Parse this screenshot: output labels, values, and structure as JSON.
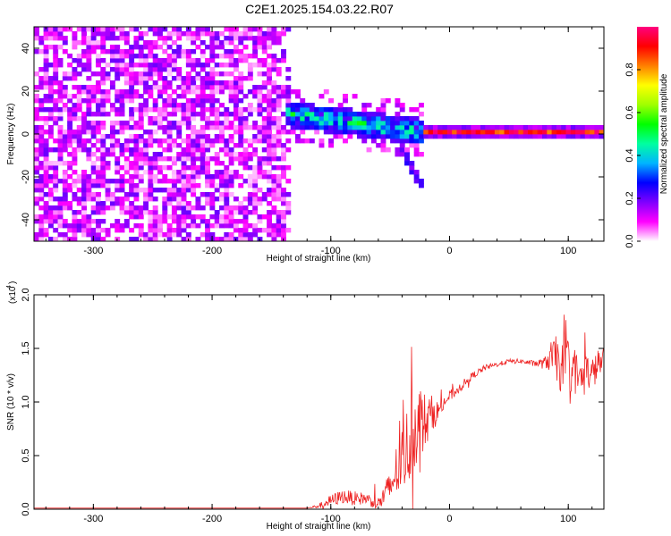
{
  "title": "C2E1.2025.154.03.22.R07",
  "chart_data": [
    {
      "type": "heatmap",
      "xlabel": "Height of straight line (km)",
      "ylabel": "Frequency (Hz)",
      "xlim": [
        -350,
        130
      ],
      "ylim": [
        -50,
        50
      ],
      "x_ticks": [
        -300,
        -200,
        -100,
        0,
        100
      ],
      "x_tick_labels": [
        "-300",
        "-200",
        "-100",
        "0",
        "100"
      ],
      "y_ticks": [
        -40,
        -20,
        0,
        20,
        40
      ],
      "y_tick_labels": [
        "-40",
        "-20",
        "0",
        "20",
        "40"
      ],
      "colorbar": {
        "label": "Normalized spectral amplitude",
        "range": [
          0.0,
          1.0
        ],
        "ticks": [
          0.0,
          0.2,
          0.4,
          0.6,
          0.8
        ],
        "tick_labels": [
          "0.0",
          "0.2",
          "0.4",
          "0.6",
          "0.8"
        ],
        "colors": [
          "#ffffff",
          "#ff00ff",
          "#7f00ff",
          "#0000ff",
          "#00b4ff",
          "#00ffa0",
          "#00ff00",
          "#a0ff00",
          "#ffff00",
          "#ff7f00",
          "#ff0000",
          "#ff007f"
        ]
      },
      "regions": [
        {
          "x_range": [
            -350,
            -135
          ],
          "freq_range": [
            -50,
            50
          ],
          "amplitude": [
            0.0,
            0.2
          ],
          "pattern": "uniform noise"
        },
        {
          "x_range": [
            -135,
            -25
          ],
          "freq_center_start": 8,
          "freq_center_end": 0,
          "spread": 6,
          "amplitude": [
            0.2,
            0.6
          ],
          "pattern": "converging band"
        },
        {
          "x_range": [
            -25,
            130
          ],
          "freq_center": 0,
          "spread": 2,
          "amplitude": [
            0.5,
            1.0
          ],
          "pattern": "narrow line at 0 Hz"
        }
      ]
    },
    {
      "type": "line",
      "xlabel": "Height of straight line (km)",
      "ylabel": "SNR (10 * v/v)",
      "y_scale_label": "(x10",
      "y_scale_exp": "4",
      "y_scale_close": ")",
      "xlim": [
        -350,
        130
      ],
      "ylim": [
        0,
        2.0
      ],
      "x_ticks": [
        -300,
        -200,
        -100,
        0,
        100
      ],
      "x_tick_labels": [
        "-300",
        "-200",
        "-100",
        "0",
        "100"
      ],
      "y_ticks": [
        0,
        0.5,
        1.0,
        1.5,
        2.0
      ],
      "y_tick_labels": [
        "0.0",
        "0.5",
        "1.0",
        "1.5",
        "2.0"
      ],
      "series": [
        {
          "color": "#ee2222",
          "x": [
            -350,
            -300,
            -250,
            -200,
            -150,
            -120,
            -110,
            -100,
            -90,
            -80,
            -70,
            -60,
            -50,
            -45,
            -40,
            -35,
            -30,
            -25,
            -20,
            -15,
            -10,
            -5,
            0,
            10,
            20,
            30,
            40,
            50,
            60,
            70,
            80,
            85,
            90,
            95,
            100,
            105,
            110,
            115,
            120,
            125,
            130
          ],
          "y": [
            0.01,
            0.01,
            0.01,
            0.01,
            0.01,
            0.01,
            0.03,
            0.08,
            0.12,
            0.1,
            0.1,
            0.05,
            0.2,
            0.35,
            0.45,
            0.6,
            0.75,
            0.85,
            0.8,
            0.9,
            0.9,
            1.0,
            1.05,
            1.15,
            1.25,
            1.32,
            1.35,
            1.38,
            1.38,
            1.36,
            1.36,
            1.42,
            1.4,
            1.3,
            1.35,
            1.3,
            1.2,
            1.3,
            1.25,
            1.35,
            1.4
          ],
          "noise": [
            0.0,
            0.0,
            0.0,
            0.0,
            0.0,
            0.0,
            0.04,
            0.1,
            0.12,
            0.12,
            0.1,
            0.12,
            0.3,
            0.45,
            0.6,
            0.7,
            0.75,
            0.6,
            0.5,
            0.3,
            0.2,
            0.15,
            0.1,
            0.08,
            0.06,
            0.05,
            0.04,
            0.04,
            0.04,
            0.05,
            0.1,
            0.25,
            0.4,
            0.45,
            0.5,
            0.4,
            0.35,
            0.3,
            0.3,
            0.25,
            0.2
          ]
        }
      ]
    }
  ]
}
